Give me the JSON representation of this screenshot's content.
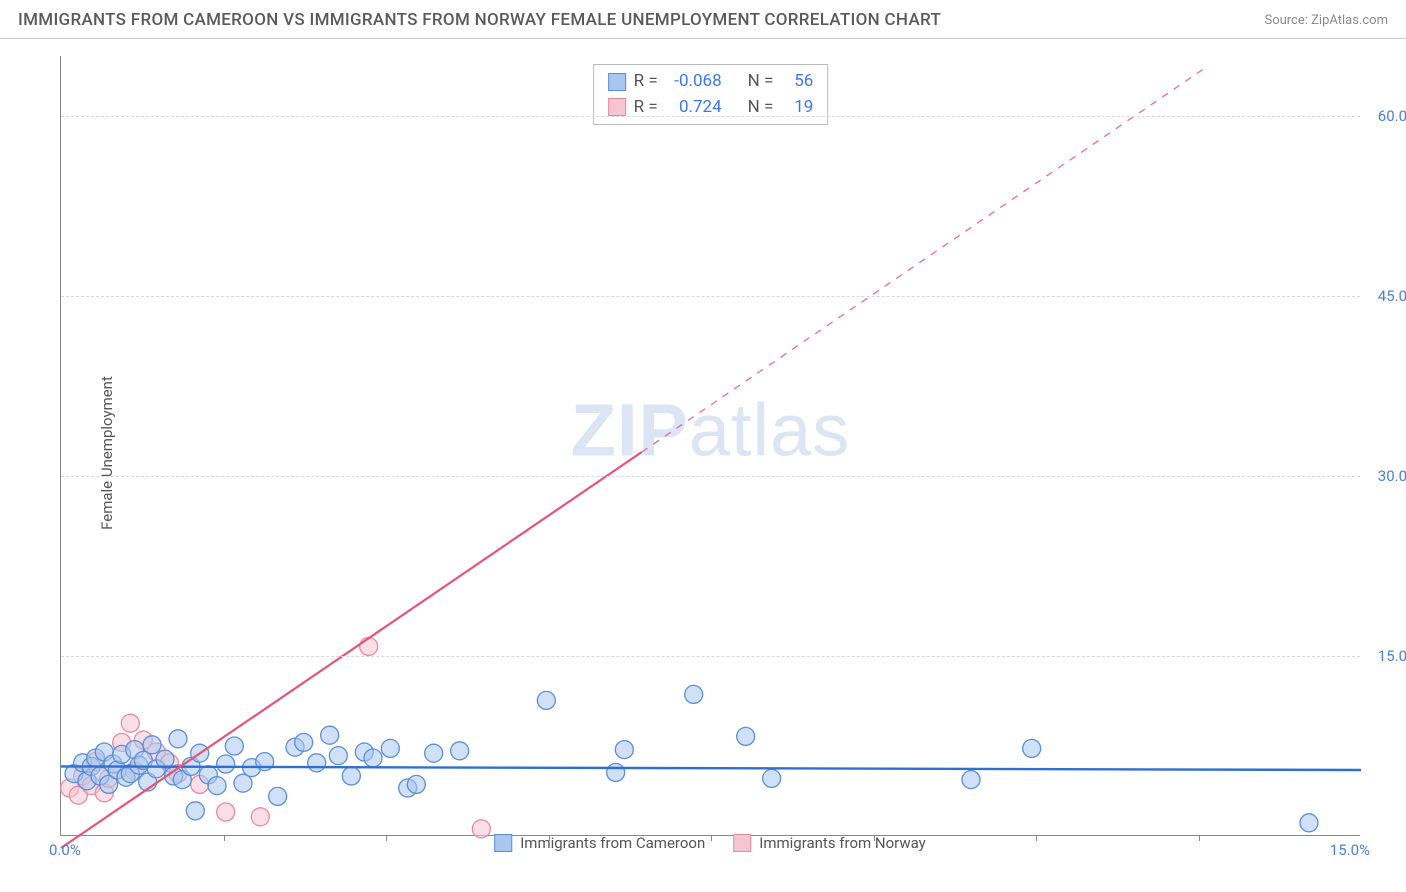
{
  "header": {
    "title": "IMMIGRANTS FROM CAMEROON VS IMMIGRANTS FROM NORWAY FEMALE UNEMPLOYMENT CORRELATION CHART",
    "source": "Source: ZipAtlas.com"
  },
  "chart": {
    "type": "scatter",
    "ylabel": "Female Unemployment",
    "watermark": {
      "bold": "ZIP",
      "rest": "atlas"
    },
    "xlim": [
      0,
      15
    ],
    "ylim": [
      0,
      65
    ],
    "x_tick_labels": {
      "start": "0.0%",
      "end": "15.0%"
    },
    "x_tick_marks": [
      1.875,
      3.75,
      5.625,
      7.5,
      9.375,
      11.25,
      13.125
    ],
    "y_grid": [
      {
        "v": 15,
        "label": "15.0%"
      },
      {
        "v": 30,
        "label": "30.0%"
      },
      {
        "v": 45,
        "label": "45.0%"
      },
      {
        "v": 60,
        "label": "60.0%"
      }
    ],
    "background_color": "#ffffff",
    "grid_color": "#d7d7d7",
    "axis_color": "#888888",
    "tick_label_color": "#4b7fd6",
    "series": {
      "cameroon": {
        "label": "Immigrants from Cameroon",
        "fill": "#a9c7ee",
        "stroke": "#5a8fd8",
        "fill_opacity": 0.55,
        "marker_r": 9,
        "line_color": "#2f6fd0",
        "line_width": 2.4,
        "trend": {
          "x1": 0,
          "y1": 5.8,
          "x2": 15,
          "y2": 5.5,
          "dash_from_x": null
        },
        "points": [
          [
            0.15,
            5.2
          ],
          [
            0.25,
            6.1
          ],
          [
            0.3,
            4.6
          ],
          [
            0.35,
            5.8
          ],
          [
            0.4,
            6.5
          ],
          [
            0.45,
            5.0
          ],
          [
            0.5,
            7.0
          ],
          [
            0.55,
            4.3
          ],
          [
            0.6,
            6.0
          ],
          [
            0.65,
            5.5
          ],
          [
            0.7,
            6.8
          ],
          [
            0.75,
            4.9
          ],
          [
            0.8,
            5.2
          ],
          [
            0.85,
            7.2
          ],
          [
            0.9,
            5.9
          ],
          [
            0.95,
            6.3
          ],
          [
            1.0,
            4.5
          ],
          [
            1.05,
            7.6
          ],
          [
            1.1,
            5.6
          ],
          [
            1.2,
            6.4
          ],
          [
            1.3,
            5.0
          ],
          [
            1.35,
            8.1
          ],
          [
            1.4,
            4.7
          ],
          [
            1.5,
            5.8
          ],
          [
            1.55,
            2.1
          ],
          [
            1.6,
            6.9
          ],
          [
            1.7,
            5.1
          ],
          [
            1.8,
            4.2
          ],
          [
            1.9,
            6.0
          ],
          [
            2.0,
            7.5
          ],
          [
            2.1,
            4.4
          ],
          [
            2.2,
            5.7
          ],
          [
            2.35,
            6.2
          ],
          [
            2.5,
            3.3
          ],
          [
            2.7,
            7.4
          ],
          [
            2.8,
            7.8
          ],
          [
            2.95,
            6.1
          ],
          [
            3.1,
            8.4
          ],
          [
            3.2,
            6.7
          ],
          [
            3.35,
            5.0
          ],
          [
            3.5,
            7.0
          ],
          [
            3.6,
            6.5
          ],
          [
            3.8,
            7.3
          ],
          [
            4.0,
            4.0
          ],
          [
            4.1,
            4.3
          ],
          [
            4.3,
            6.9
          ],
          [
            4.6,
            7.1
          ],
          [
            5.6,
            11.3
          ],
          [
            6.4,
            5.3
          ],
          [
            6.5,
            7.2
          ],
          [
            7.3,
            11.8
          ],
          [
            7.9,
            8.3
          ],
          [
            8.2,
            4.8
          ],
          [
            10.5,
            4.7
          ],
          [
            11.2,
            7.3
          ],
          [
            14.4,
            1.1
          ]
        ]
      },
      "norway": {
        "label": "Immigrants from Norway",
        "fill": "#f6c5d2",
        "stroke": "#e78aa3",
        "fill_opacity": 0.55,
        "marker_r": 9,
        "line_color": "#e6537a",
        "line_width": 2.2,
        "trend": {
          "x1": 0,
          "y1": -1.0,
          "x2": 13.2,
          "y2": 64.0,
          "dash_from_x": 6.7
        },
        "points": [
          [
            0.1,
            4.0
          ],
          [
            0.2,
            3.4
          ],
          [
            0.25,
            5.0
          ],
          [
            0.35,
            4.2
          ],
          [
            0.4,
            6.2
          ],
          [
            0.5,
            3.6
          ],
          [
            0.55,
            4.8
          ],
          [
            0.7,
            7.8
          ],
          [
            0.8,
            9.4
          ],
          [
            0.85,
            5.4
          ],
          [
            0.95,
            8.0
          ],
          [
            1.1,
            7.0
          ],
          [
            1.25,
            6.1
          ],
          [
            1.35,
            5.2
          ],
          [
            1.6,
            4.3
          ],
          [
            1.9,
            2.0
          ],
          [
            2.3,
            1.6
          ],
          [
            3.55,
            15.8
          ],
          [
            4.85,
            0.6
          ]
        ]
      }
    },
    "stats_box": {
      "rows": [
        {
          "series": "cameroon",
          "r_label": "R =",
          "r": "-0.068",
          "n_label": "N =",
          "n": "56"
        },
        {
          "series": "norway",
          "r_label": "R =",
          "r": "0.724",
          "n_label": "N =",
          "n": "19"
        }
      ]
    },
    "bottom_legend": [
      {
        "series": "cameroon"
      },
      {
        "series": "norway"
      }
    ]
  }
}
